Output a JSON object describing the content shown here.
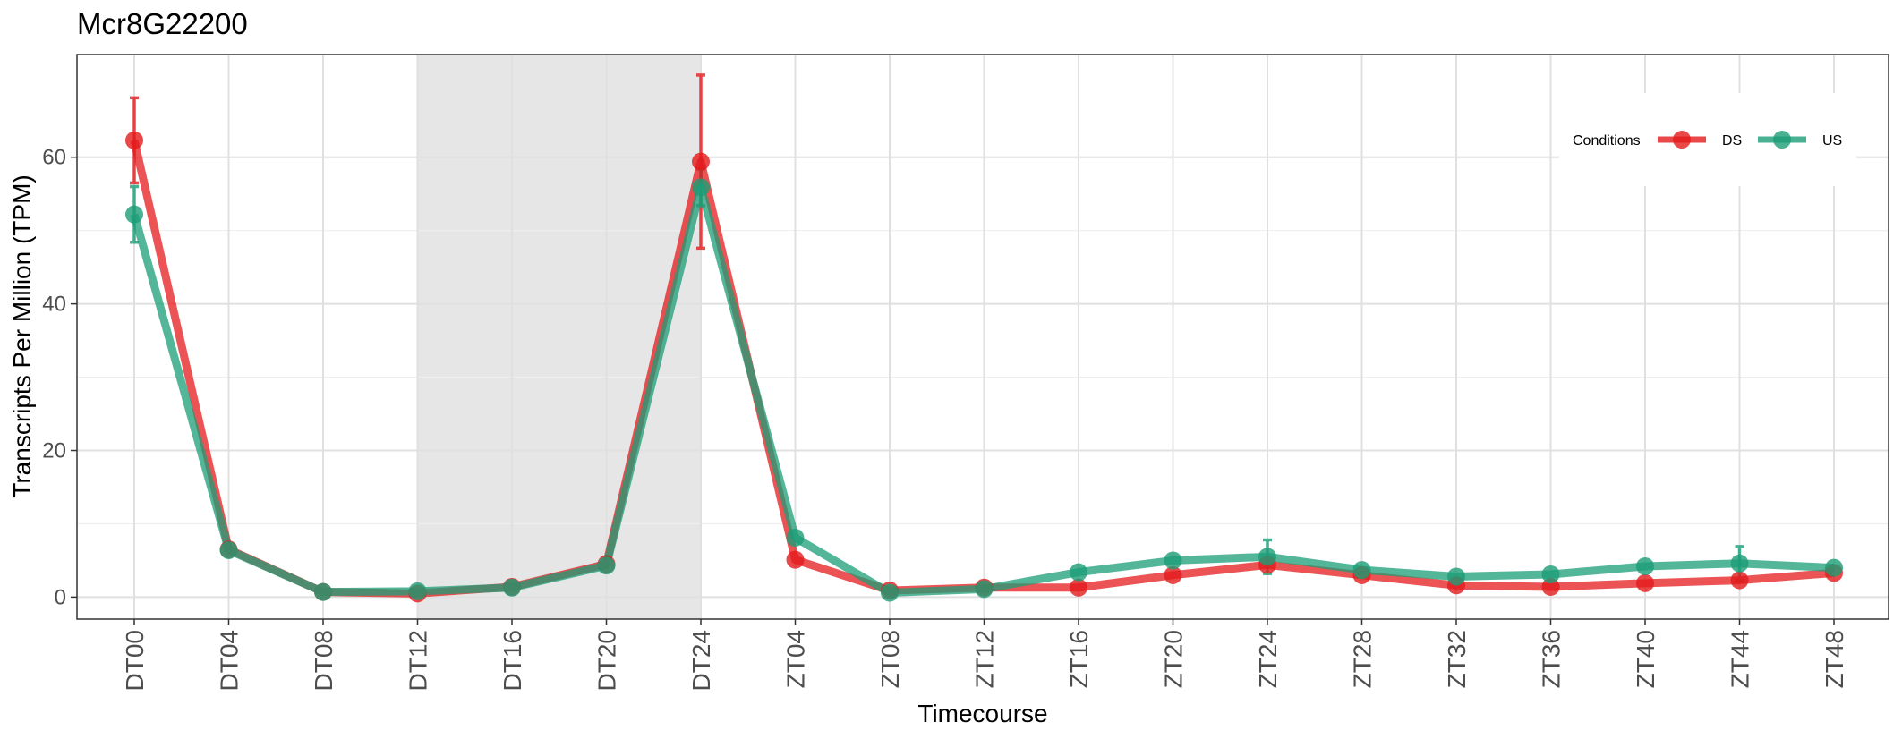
{
  "chart_data": {
    "type": "line",
    "title": "Mcr8G22200",
    "xlabel": "Timecourse",
    "ylabel": "Transcripts Per Million (TPM)",
    "categories": [
      "DT00",
      "DT04",
      "DT08",
      "DT12",
      "DT16",
      "DT20",
      "DT24",
      "ZT04",
      "ZT08",
      "ZT12",
      "ZT16",
      "ZT20",
      "ZT24",
      "ZT28",
      "ZT32",
      "ZT36",
      "ZT40",
      "ZT44",
      "ZT48"
    ],
    "ylim": [
      -3,
      74
    ],
    "yticks": [
      0,
      20,
      40,
      60
    ],
    "yticklabels": [
      "0",
      "20",
      "40",
      "60"
    ],
    "shaded_region": [
      "DT12",
      "DT24"
    ],
    "grid": true,
    "legend": {
      "title": "Conditions",
      "position": "top-right"
    },
    "series": [
      {
        "name": "DS",
        "color": "#e41a1c",
        "values": [
          62.3,
          6.5,
          0.7,
          0.5,
          1.4,
          4.5,
          59.4,
          5.1,
          0.9,
          1.3,
          1.3,
          3.0,
          4.4,
          3.0,
          1.6,
          1.4,
          1.9,
          2.3,
          3.3
        ],
        "error": [
          5.8,
          0,
          0,
          0,
          0,
          0,
          11.8,
          0,
          0,
          0,
          0,
          0,
          0,
          0,
          0,
          0,
          0,
          0,
          0
        ]
      },
      {
        "name": "US",
        "color": "#1b9e77",
        "values": [
          52.2,
          6.4,
          0.7,
          0.8,
          1.3,
          4.3,
          55.9,
          8.1,
          0.6,
          1.1,
          3.4,
          5.0,
          5.5,
          3.7,
          2.8,
          3.1,
          4.2,
          4.6,
          4.0
        ],
        "error": [
          3.8,
          0,
          0,
          0,
          0,
          0,
          2.5,
          0,
          0,
          0,
          0,
          0,
          2.3,
          0,
          0,
          0,
          0,
          2.3,
          0
        ]
      }
    ]
  }
}
